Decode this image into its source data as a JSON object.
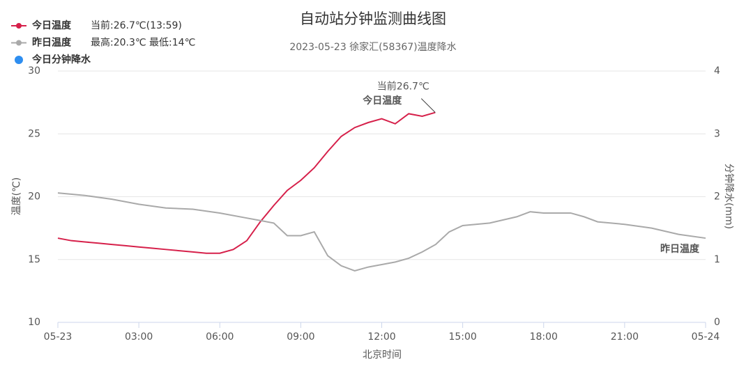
{
  "chart_data": {
    "type": "line",
    "title": "自动站分钟监测曲线图",
    "subtitle": "2023-05-23 徐家汇(58367)温度降水",
    "x_label": "北京时间",
    "y_label": "温度(℃)",
    "y2_label": "分钟降水(mm)",
    "xlim": [
      0,
      24
    ],
    "xticks": [
      {
        "value": 0,
        "label": "05-23"
      },
      {
        "value": 3,
        "label": "03:00"
      },
      {
        "value": 6,
        "label": "06:00"
      },
      {
        "value": 9,
        "label": "09:00"
      },
      {
        "value": 12,
        "label": "12:00"
      },
      {
        "value": 15,
        "label": "15:00"
      },
      {
        "value": 18,
        "label": "18:00"
      },
      {
        "value": 21,
        "label": "21:00"
      },
      {
        "value": 24,
        "label": "05-24"
      }
    ],
    "ylim": [
      10,
      30
    ],
    "yticks": [
      10,
      15,
      20,
      25,
      30
    ],
    "y2lim": [
      0,
      4
    ],
    "y2ticks": [
      0,
      1,
      2,
      3,
      4
    ],
    "grid": true,
    "series": [
      {
        "name": "今日温度",
        "color": "#d6204a",
        "legend_note": "当前:26.7℃(13:59)",
        "end_label": "今日温度",
        "x": [
          0,
          0.5,
          1,
          1.5,
          2,
          2.5,
          3,
          3.5,
          4,
          4.5,
          5,
          5.5,
          6,
          6.5,
          7,
          7.5,
          8,
          8.5,
          9,
          9.5,
          10,
          10.5,
          11,
          11.5,
          12,
          12.5,
          13,
          13.5,
          13.983
        ],
        "values": [
          16.7,
          16.5,
          16.4,
          16.3,
          16.2,
          16.1,
          16.0,
          15.9,
          15.8,
          15.7,
          15.6,
          15.5,
          15.5,
          15.8,
          16.5,
          18.0,
          19.3,
          20.5,
          21.3,
          22.3,
          23.6,
          24.8,
          25.5,
          25.9,
          26.2,
          25.8,
          26.6,
          26.4,
          26.7
        ]
      },
      {
        "name": "昨日温度",
        "color": "#a9a9a9",
        "legend_note": "最高:20.3℃ 最低:14℃",
        "end_label": "昨日温度",
        "x": [
          0,
          1,
          2,
          3,
          4,
          5,
          6,
          7,
          7.5,
          8,
          8.5,
          9,
          9.5,
          10,
          10.5,
          11,
          11.5,
          12,
          12.5,
          13,
          13.5,
          14,
          14.5,
          15,
          16,
          17,
          17.5,
          18,
          19,
          19.5,
          20,
          21,
          22,
          23,
          24
        ],
        "values": [
          20.3,
          20.1,
          19.8,
          19.4,
          19.1,
          19.0,
          18.7,
          18.3,
          18.1,
          17.9,
          16.9,
          16.9,
          17.2,
          15.3,
          14.5,
          14.1,
          14.4,
          14.6,
          14.8,
          15.1,
          15.6,
          16.2,
          17.2,
          17.7,
          17.9,
          18.4,
          18.8,
          18.7,
          18.7,
          18.4,
          18.0,
          17.8,
          17.5,
          17.0,
          16.7
        ]
      },
      {
        "name": "今日分钟降水",
        "color": "#2e8ef0",
        "axis": "y2",
        "x": [],
        "values": []
      }
    ],
    "annotations": [
      {
        "text": "当前26.7℃",
        "x": 13.983,
        "y": 26.7
      }
    ]
  }
}
